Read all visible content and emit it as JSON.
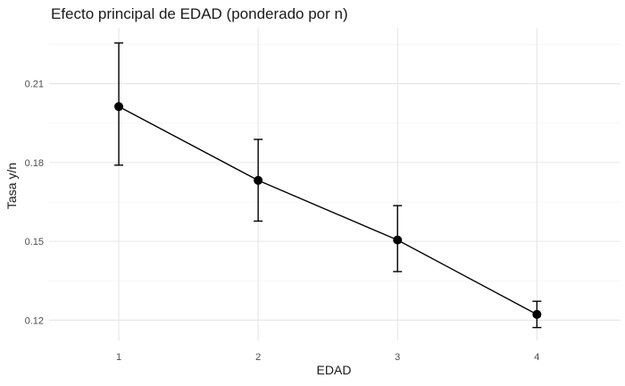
{
  "chart_data": {
    "type": "line",
    "title": "Efecto principal de EDAD (ponderado por n)",
    "xlabel": "EDAD",
    "ylabel": "Tasa y/n",
    "x": [
      1,
      2,
      3,
      4
    ],
    "x_tick_labels": [
      "1",
      "2",
      "3",
      "4"
    ],
    "y_ticks": [
      0.12,
      0.15,
      0.18,
      0.21
    ],
    "y_tick_labels": [
      "0.12",
      "0.15",
      "0.18",
      "0.21"
    ],
    "ylim": [
      0.1123,
      0.2313
    ],
    "xlim": [
      0.5,
      4.6
    ],
    "grid": true,
    "legend": "none",
    "series": [
      {
        "values": [
          0.2013,
          0.1732,
          0.1505,
          0.1222
        ],
        "error_low": [
          0.179,
          0.1577,
          0.1385,
          0.1172
        ],
        "error_high": [
          0.2255,
          0.1888,
          0.1636,
          0.1272
        ],
        "color": "#000000"
      }
    ]
  }
}
